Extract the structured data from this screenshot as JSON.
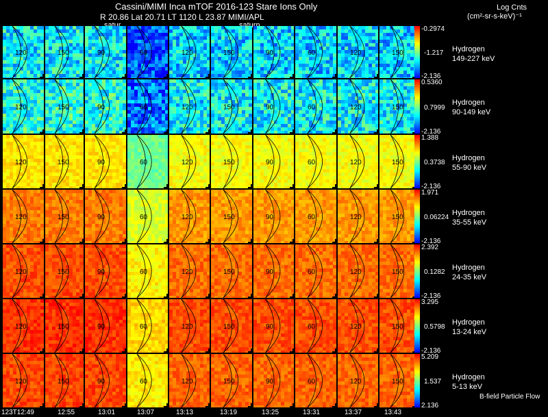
{
  "header": {
    "title": "Cassini/MIMI Inca mTOF  2016-123    Stare    Ions Only",
    "subtitle": "R          20.86 Lat 20.71 LT 1120 L          23.87   MIMI/APL",
    "units_line1": "Log Cnts",
    "units_line2": "(cm²-sr-s-keV)⁻¹",
    "flow_label": "B-field Particle Flow",
    "saturn_labels": [
      "satur",
      "saturn"
    ]
  },
  "chart_data": {
    "type": "heatmap",
    "description_free": true,
    "time_ticks": [
      "123T12:49",
      "12:55",
      "13:01",
      "13:07",
      "13:13",
      "13:19",
      "13:25",
      "13:31",
      "13:37",
      "13:43"
    ],
    "channels": [
      {
        "species": "Hydrogen",
        "energy": "149-227 keV",
        "max": "-0.2974",
        "mid": "-1.217",
        "min": "-2.136"
      },
      {
        "species": "Hydrogen",
        "energy": "90-149 keV",
        "max": "0.5360",
        "mid": "0.7999",
        "min": "-2.136"
      },
      {
        "species": "Hydrogen",
        "energy": "55-90 keV",
        "max": "1.388",
        "mid": "0.3738",
        "min": "-2.136"
      },
      {
        "species": "Hydrogen",
        "energy": "35-55 keV",
        "max": "1.971",
        "mid": "0.06224",
        "min": "-2.136"
      },
      {
        "species": "Hydrogen",
        "energy": "24-35 keV",
        "max": "2.392",
        "mid": "0.1282",
        "min": "-2.136"
      },
      {
        "species": "Hydrogen",
        "energy": "13-24 keV",
        "max": "3.295",
        "mid": "0.5798",
        "min": "-2.136"
      },
      {
        "species": "Hydrogen",
        "energy": "5-13 keV",
        "max": "5.209",
        "mid": "1.537",
        "min": "2.136"
      }
    ],
    "row_level": [
      0.28,
      0.33,
      0.66,
      0.8,
      0.86,
      0.9,
      0.87
    ],
    "pitch_contours": [
      "120",
      "150",
      "90",
      "60"
    ],
    "colormap": [
      "#0000ff",
      "#00ffff",
      "#ffff00",
      "#ff0000"
    ]
  }
}
